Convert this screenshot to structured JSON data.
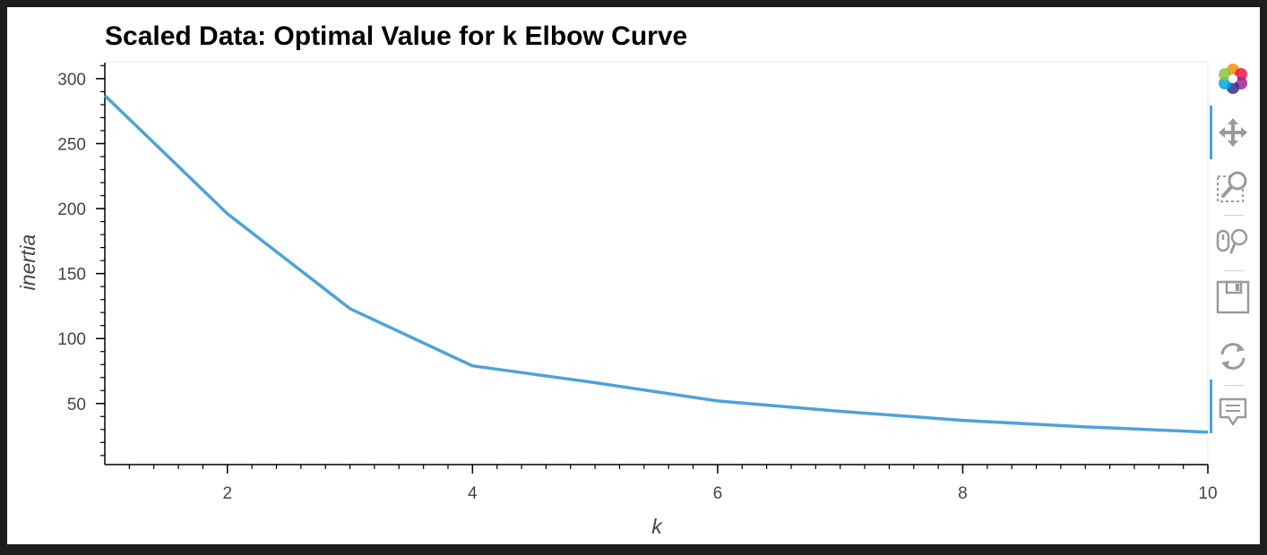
{
  "chart_data": {
    "type": "line",
    "title": "Scaled Data: Optimal Value for k Elbow Curve",
    "xlabel": "k",
    "ylabel": "inertia",
    "x": [
      1,
      2,
      3,
      4,
      5,
      6,
      7,
      8,
      9,
      10
    ],
    "series": [
      {
        "values": [
          287.0,
          196.0,
          123.0,
          79.0,
          66.0,
          52.0,
          44.0,
          37.0,
          32.0,
          28.0
        ]
      }
    ],
    "xlim": [
      1,
      10
    ],
    "ylim": [
      3,
      313
    ],
    "xticks": [
      2,
      4,
      6,
      8,
      10
    ],
    "yticks": [
      50,
      100,
      150,
      200,
      250,
      300
    ],
    "line_color": "#4ea3d8",
    "grid": false,
    "legend": "none"
  },
  "toolbar": {
    "items": [
      {
        "icon": "bokeh-logo-icon"
      },
      {
        "icon": "pan-icon",
        "active": true
      },
      {
        "icon": "box-zoom-icon"
      },
      {
        "icon": "wheel-zoom-icon"
      },
      {
        "icon": "save-icon"
      },
      {
        "icon": "reset-icon"
      },
      {
        "icon": "hover-icon",
        "active": true
      }
    ]
  }
}
